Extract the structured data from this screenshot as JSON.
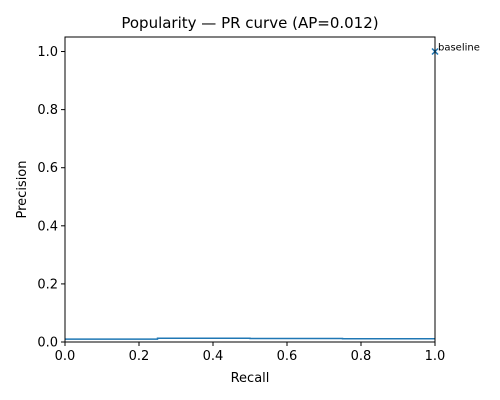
{
  "chart_data": {
    "type": "line",
    "title": "Popularity — PR curve (AP=0.012)",
    "xlabel": "Recall",
    "ylabel": "Precision",
    "xlim": [
      0,
      1
    ],
    "ylim": [
      0,
      1.05
    ],
    "xticks": [
      "0.0",
      "0.2",
      "0.4",
      "0.6",
      "0.8",
      "1.0"
    ],
    "xtick_values": [
      0,
      0.2,
      0.4,
      0.6,
      0.8,
      1.0
    ],
    "yticks": [
      "0.0",
      "0.2",
      "0.4",
      "0.6",
      "0.8",
      "1.0"
    ],
    "ytick_values": [
      0,
      0.2,
      0.4,
      0.6,
      0.8,
      1.0
    ],
    "grid": false,
    "series": [
      {
        "drawstyle": "steps-post",
        "color": "#1f77b4",
        "x": [
          0.0,
          0.25,
          0.25,
          0.5,
          0.5,
          0.75,
          0.75,
          1.0
        ],
        "y": [
          0.01,
          0.01,
          0.013,
          0.013,
          0.012,
          0.012,
          0.011,
          0.011
        ]
      }
    ],
    "annotations": [
      {
        "text": "baseline",
        "x": 1.0,
        "y": 1.0,
        "marker": "x",
        "color": "#1f77b4"
      }
    ]
  }
}
